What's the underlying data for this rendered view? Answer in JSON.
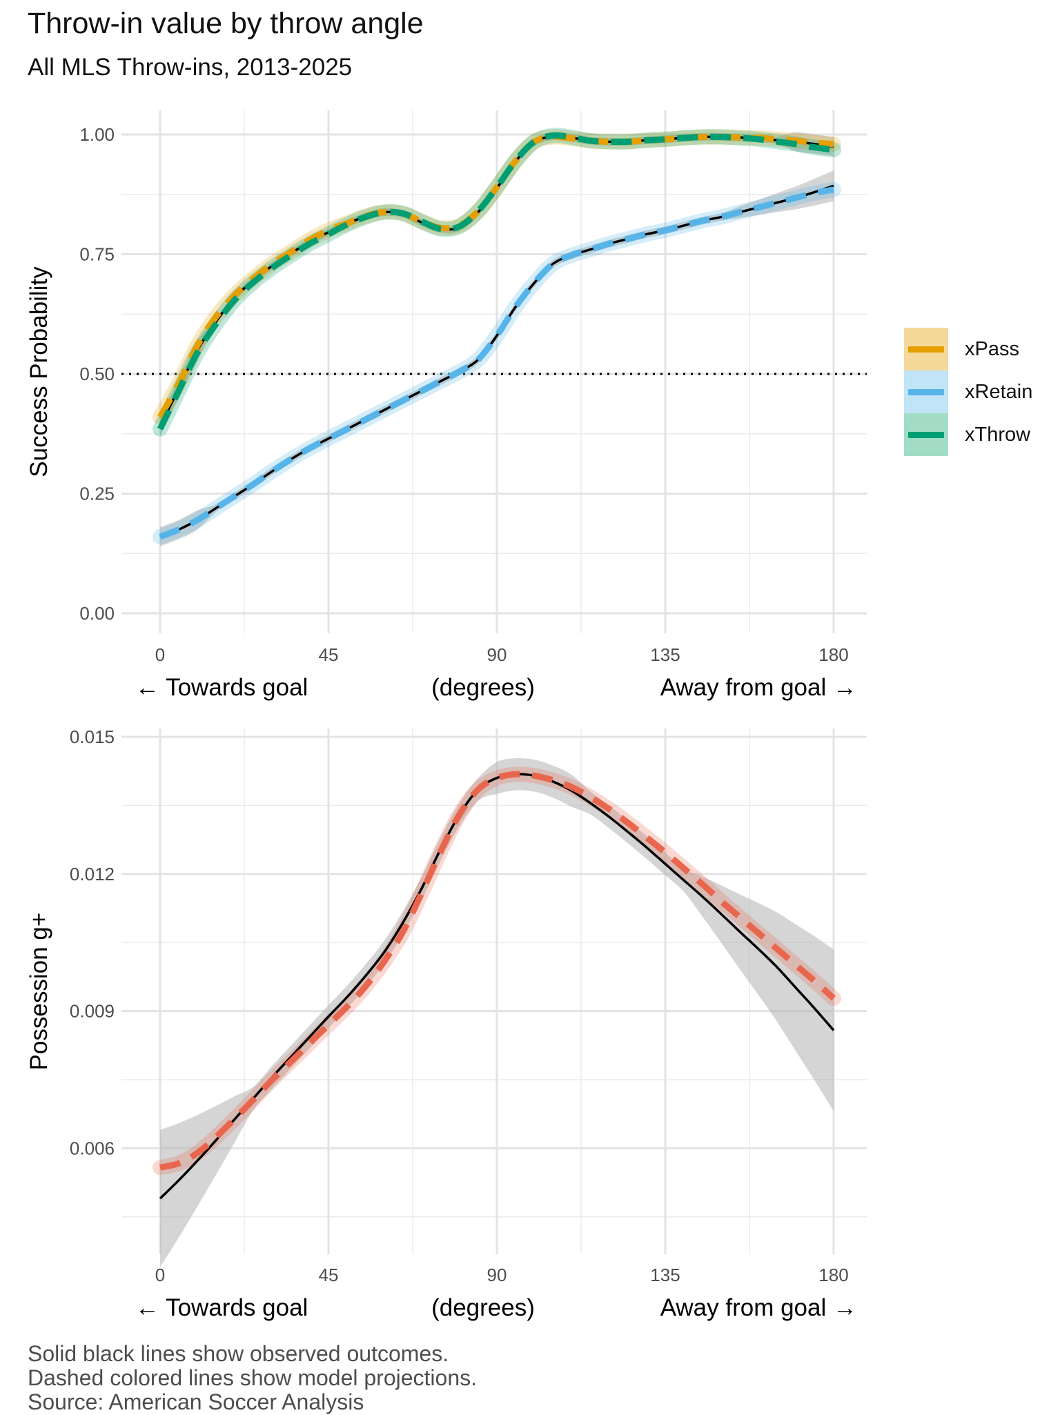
{
  "title": "Throw-in value by throw angle",
  "subtitle": "All MLS Throw-ins, 2013-2025",
  "caption": [
    "Solid black lines show observed outcomes.",
    "Dashed colored lines show model projections.",
    "Source: American Soccer Analysis"
  ],
  "colors": {
    "xPass": "#E69F00",
    "xRetain": "#56B4E9",
    "xThrow": "#009E73",
    "gplus": "#E8664D",
    "observed": "#000000",
    "ribbon": "#b3b3b3"
  },
  "legend": [
    {
      "label": "xPass",
      "color": "#E69F00"
    },
    {
      "label": "xRetain",
      "color": "#56B4E9"
    },
    {
      "label": "xThrow",
      "color": "#009E73"
    }
  ],
  "chart_data": [
    {
      "type": "line",
      "title": "",
      "ylabel": "Success Probability",
      "xlabel_left": "← Towards goal",
      "xlabel_center": "(degrees)",
      "xlabel_right": "Away from goal →",
      "xlim": [
        0,
        180
      ],
      "ylim": [
        0,
        1
      ],
      "x_ticks": [
        0,
        45,
        90,
        135,
        180
      ],
      "x_tick_labels": [
        "0",
        "45",
        "90",
        "135",
        "180"
      ],
      "y_ticks": [
        0,
        0.25,
        0.5,
        0.75,
        1.0
      ],
      "y_tick_labels": [
        "0.00",
        "0.25",
        "0.50",
        "0.75",
        "1.00"
      ],
      "reference_line": {
        "y": 0.5,
        "style": "dotted"
      },
      "x": [
        0,
        5,
        10,
        15,
        20,
        25,
        30,
        35,
        40,
        45,
        50,
        55,
        60,
        65,
        70,
        75,
        80,
        85,
        90,
        95,
        100,
        105,
        110,
        115,
        120,
        125,
        130,
        135,
        140,
        145,
        150,
        155,
        160,
        165,
        170,
        175,
        180
      ],
      "series": [
        {
          "name": "xPass",
          "style": "dashed",
          "values": [
            0.41,
            0.48,
            0.56,
            0.62,
            0.665,
            0.7,
            0.73,
            0.755,
            0.78,
            0.8,
            0.815,
            0.83,
            0.838,
            0.835,
            0.818,
            0.805,
            0.81,
            0.84,
            0.89,
            0.945,
            0.985,
            0.995,
            0.992,
            0.987,
            0.985,
            0.985,
            0.988,
            0.99,
            0.993,
            0.995,
            0.995,
            0.994,
            0.993,
            0.99,
            0.987,
            0.983,
            0.98
          ]
        },
        {
          "name": "xRetain",
          "style": "dashed",
          "values": [
            0.16,
            0.175,
            0.195,
            0.22,
            0.245,
            0.27,
            0.297,
            0.322,
            0.345,
            0.365,
            0.385,
            0.405,
            0.425,
            0.445,
            0.465,
            0.485,
            0.505,
            0.53,
            0.58,
            0.64,
            0.69,
            0.73,
            0.748,
            0.76,
            0.772,
            0.782,
            0.792,
            0.8,
            0.81,
            0.82,
            0.828,
            0.838,
            0.848,
            0.858,
            0.868,
            0.878,
            0.885
          ]
        },
        {
          "name": "xThrow",
          "style": "dashed",
          "values": [
            0.385,
            0.465,
            0.545,
            0.605,
            0.655,
            0.692,
            0.722,
            0.748,
            0.772,
            0.792,
            0.812,
            0.828,
            0.838,
            0.835,
            0.818,
            0.803,
            0.808,
            0.84,
            0.89,
            0.945,
            0.985,
            0.998,
            0.994,
            0.987,
            0.985,
            0.985,
            0.988,
            0.99,
            0.993,
            0.995,
            0.995,
            0.993,
            0.99,
            0.985,
            0.98,
            0.973,
            0.968
          ]
        },
        {
          "name": "Observed (pass)",
          "style": "solid",
          "values": [
            0.39,
            0.47,
            0.55,
            0.61,
            0.66,
            0.696,
            0.726,
            0.752,
            0.776,
            0.796,
            0.814,
            0.829,
            0.838,
            0.834,
            0.816,
            0.803,
            0.806,
            0.838,
            0.888,
            0.944,
            0.984,
            0.996,
            0.993,
            0.987,
            0.985,
            0.985,
            0.988,
            0.99,
            0.993,
            0.995,
            0.995,
            0.994,
            0.992,
            0.988,
            0.985,
            0.98,
            0.975
          ]
        },
        {
          "name": "Observed (retain)",
          "style": "solid",
          "values": [
            0.16,
            0.175,
            0.195,
            0.22,
            0.245,
            0.27,
            0.297,
            0.322,
            0.345,
            0.365,
            0.385,
            0.405,
            0.425,
            0.445,
            0.465,
            0.485,
            0.505,
            0.53,
            0.58,
            0.64,
            0.69,
            0.73,
            0.748,
            0.76,
            0.772,
            0.782,
            0.792,
            0.8,
            0.81,
            0.82,
            0.828,
            0.838,
            0.848,
            0.858,
            0.868,
            0.88,
            0.893
          ]
        }
      ]
    },
    {
      "type": "line",
      "title": "",
      "ylabel": "Possession g+",
      "xlabel_left": "← Towards goal",
      "xlabel_center": "(degrees)",
      "xlabel_right": "Away from goal →",
      "xlim": [
        0,
        180
      ],
      "ylim": [
        0.0035,
        0.015
      ],
      "x_ticks": [
        0,
        45,
        90,
        135,
        180
      ],
      "x_tick_labels": [
        "0",
        "45",
        "90",
        "135",
        "180"
      ],
      "y_ticks": [
        0.006,
        0.009,
        0.012,
        0.015
      ],
      "y_tick_labels": [
        "0.006",
        "0.009",
        "0.012",
        "0.015"
      ],
      "x": [
        0,
        5,
        10,
        15,
        20,
        25,
        30,
        35,
        40,
        45,
        50,
        55,
        60,
        65,
        70,
        75,
        80,
        85,
        90,
        95,
        100,
        105,
        110,
        115,
        120,
        125,
        130,
        135,
        140,
        145,
        150,
        155,
        160,
        165,
        170,
        175,
        180
      ],
      "series": [
        {
          "name": "Model projection",
          "style": "dashed",
          "values": [
            0.00558,
            0.00567,
            0.0059,
            0.00625,
            0.00665,
            0.00707,
            0.0075,
            0.0079,
            0.0083,
            0.0087,
            0.0091,
            0.00955,
            0.0101,
            0.01075,
            0.0116,
            0.0125,
            0.0133,
            0.01385,
            0.0141,
            0.01418,
            0.01415,
            0.01405,
            0.0139,
            0.01368,
            0.01342,
            0.01312,
            0.0128,
            0.01247,
            0.01212,
            0.01177,
            0.0114,
            0.01105,
            0.0107,
            0.01035,
            0.01,
            0.00965,
            0.00928
          ]
        },
        {
          "name": "Observed",
          "style": "solid",
          "values": [
            0.0049,
            0.0053,
            0.00573,
            0.00618,
            0.00664,
            0.0071,
            0.00756,
            0.008,
            0.00844,
            0.00888,
            0.00931,
            0.00978,
            0.0103,
            0.01095,
            0.0117,
            0.01255,
            0.0133,
            0.01385,
            0.0141,
            0.01418,
            0.01415,
            0.01402,
            0.01382,
            0.01355,
            0.01325,
            0.01292,
            0.01258,
            0.01222,
            0.01186,
            0.0115,
            0.01112,
            0.01073,
            0.01035,
            0.00995,
            0.0095,
            0.00905,
            0.00858
          ]
        }
      ]
    }
  ]
}
